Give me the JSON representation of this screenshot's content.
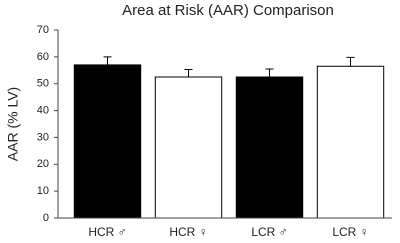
{
  "chart_data": {
    "type": "bar",
    "title": "Area at Risk (AAR) Comparison",
    "y_label": "AAR (% LV)",
    "categories": [
      "HCR ♂",
      "HCR ♀",
      "LCR ♂",
      "LCR ♀"
    ],
    "values": [
      57,
      52.5,
      52.5,
      56.5
    ],
    "errors": [
      3,
      2.8,
      3,
      3.3
    ],
    "colors": [
      "#000000",
      "#ffffff",
      "#000000",
      "#ffffff"
    ],
    "ylim": [
      0,
      70
    ],
    "yticks": [
      0,
      10,
      20,
      30,
      40,
      50,
      60,
      70
    ],
    "grid": false
  }
}
